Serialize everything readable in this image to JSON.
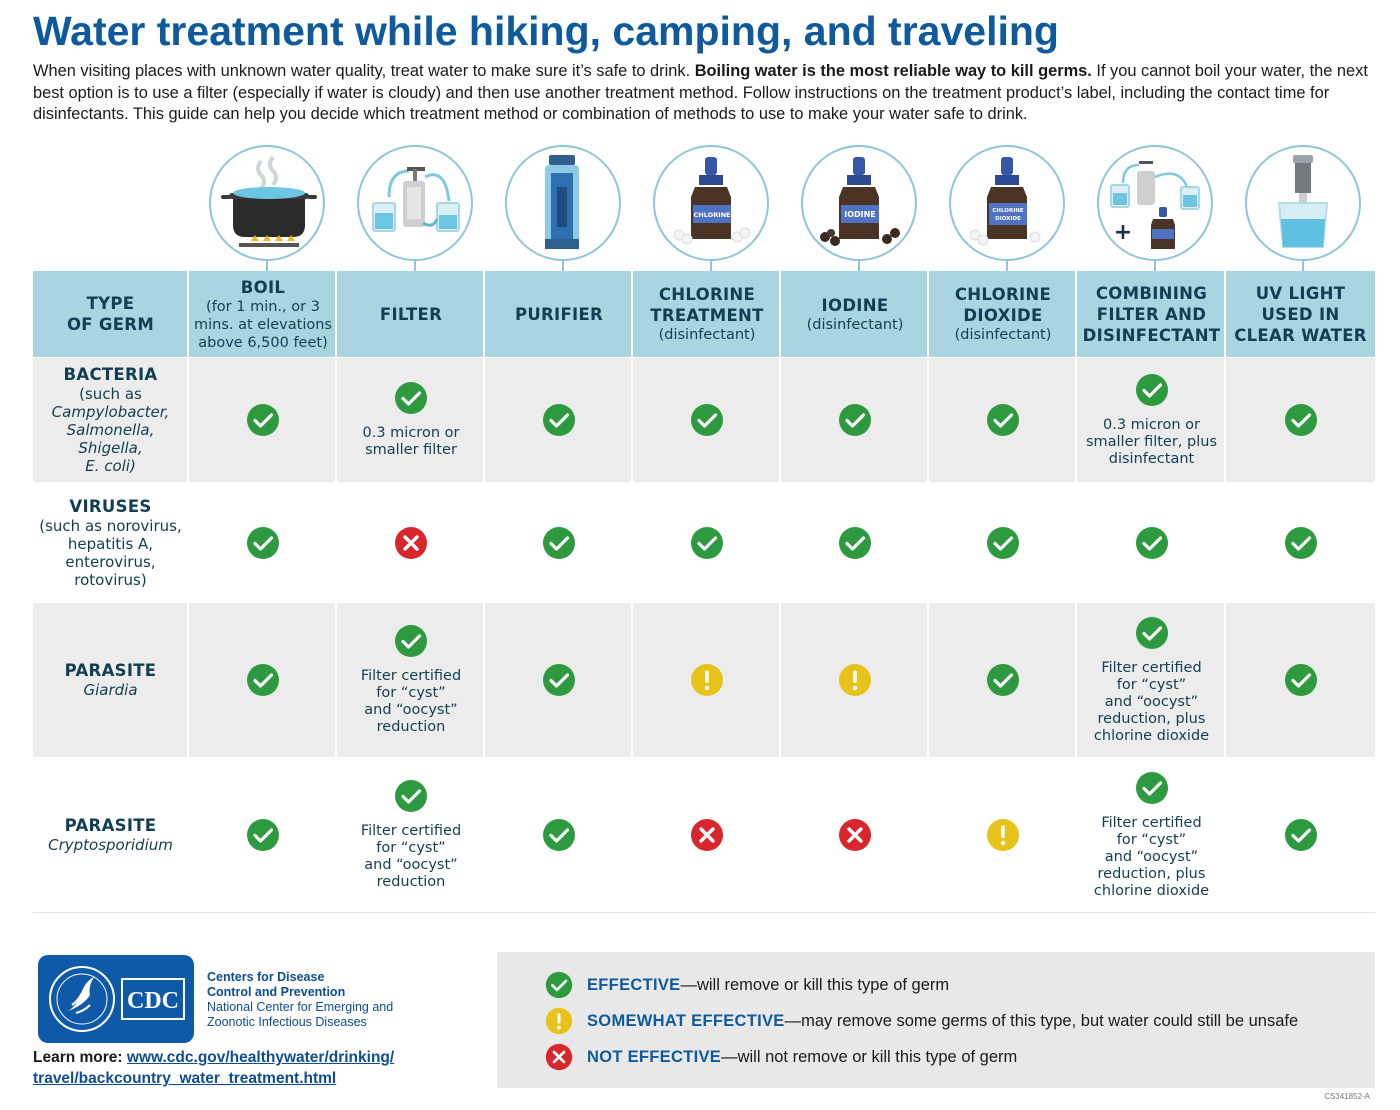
{
  "title": "Water treatment while hiking, camping, and traveling",
  "intro": {
    "part1": "When visiting places with unknown water quality, treat water to make sure it’s safe to drink.  ",
    "bold": "Boiling water is the most reliable way to kill germs.",
    "part2": " If you cannot boil your water, the next best option is to use a filter (especially if water is cloudy) and then use another treatment method. Follow instructions on the treatment product’s label, including the contact time for disinfectants. This guide can help you decide which treatment method or combination of methods to use to make your water safe to drink."
  },
  "icons": {
    "chlorine_label": "CHLORINE",
    "iodine_label": "IODINE",
    "chlorine_dioxide_label_1": "CHLORINE",
    "chlorine_dioxide_label_2": "DIOXIDE"
  },
  "colors": {
    "effective": "#2e9a3f",
    "somewhat": "#e6c21a",
    "not_effective": "#d8262c",
    "header_bg": "#a8d5df",
    "title": "#0e5a9c"
  },
  "table": {
    "first_header": [
      "TYPE",
      "OF GERM"
    ],
    "columns": [
      {
        "title": [
          "BOIL"
        ],
        "sub": [
          "(for 1 min., or 3",
          "mins. at elevations",
          "above 6,500 feet)"
        ]
      },
      {
        "title": [
          "FILTER"
        ],
        "sub": []
      },
      {
        "title": [
          "PURIFIER"
        ],
        "sub": []
      },
      {
        "title": [
          "CHLORINE",
          "TREATMENT"
        ],
        "sub": [
          "(disinfectant)"
        ]
      },
      {
        "title": [
          "IODINE"
        ],
        "sub": [
          "(disinfectant)"
        ]
      },
      {
        "title": [
          "CHLORINE",
          "DIOXIDE"
        ],
        "sub": [
          "(disinfectant)"
        ]
      },
      {
        "title": [
          "COMBINING",
          "FILTER AND",
          "DISINFECTANT"
        ],
        "sub": []
      },
      {
        "title": [
          "UV LIGHT",
          "USED IN",
          "CLEAR WATER"
        ],
        "sub": []
      }
    ],
    "rows": [
      {
        "name": "BACTERIA",
        "sub": [
          "(such as",
          "Campylobacter,",
          "Salmonella, Shigella,",
          "E. coli)"
        ],
        "cells": [
          {
            "status": "effective",
            "note": []
          },
          {
            "status": "effective",
            "note": [
              "0.3 micron or",
              "smaller filter"
            ]
          },
          {
            "status": "effective",
            "note": []
          },
          {
            "status": "effective",
            "note": []
          },
          {
            "status": "effective",
            "note": []
          },
          {
            "status": "effective",
            "note": []
          },
          {
            "status": "effective",
            "note": [
              "0.3 micron or",
              "smaller filter, plus",
              "disinfectant"
            ]
          },
          {
            "status": "effective",
            "note": []
          }
        ]
      },
      {
        "name": "VIRUSES",
        "sub": [
          "(such as norovirus,",
          "hepatitis A,",
          "enterovirus,",
          "rotovirus)"
        ],
        "cells": [
          {
            "status": "effective",
            "note": []
          },
          {
            "status": "not_effective",
            "note": []
          },
          {
            "status": "effective",
            "note": []
          },
          {
            "status": "effective",
            "note": []
          },
          {
            "status": "effective",
            "note": []
          },
          {
            "status": "effective",
            "note": []
          },
          {
            "status": "effective",
            "note": []
          },
          {
            "status": "effective",
            "note": []
          }
        ]
      },
      {
        "name": "PARASITE",
        "sub": [
          "Giardia"
        ],
        "cells": [
          {
            "status": "effective",
            "note": []
          },
          {
            "status": "effective",
            "note": [
              "Filter certified",
              "for “cyst”",
              "and “oocyst”",
              "reduction"
            ]
          },
          {
            "status": "effective",
            "note": []
          },
          {
            "status": "somewhat",
            "note": []
          },
          {
            "status": "somewhat",
            "note": []
          },
          {
            "status": "effective",
            "note": []
          },
          {
            "status": "effective",
            "note": [
              "Filter certified",
              "for “cyst”",
              "and “oocyst”",
              "reduction, plus",
              "chlorine dioxide"
            ]
          },
          {
            "status": "effective",
            "note": []
          }
        ]
      },
      {
        "name": "PARASITE",
        "sub": [
          "Cryptosporidium"
        ],
        "cells": [
          {
            "status": "effective",
            "note": []
          },
          {
            "status": "effective",
            "note": [
              "Filter certified",
              "for “cyst”",
              "and “oocyst”",
              "reduction"
            ]
          },
          {
            "status": "effective",
            "note": []
          },
          {
            "status": "not_effective",
            "note": []
          },
          {
            "status": "not_effective",
            "note": []
          },
          {
            "status": "somewhat",
            "note": []
          },
          {
            "status": "effective",
            "note": [
              "Filter certified",
              "for “cyst”",
              "and “oocyst”",
              "reduction, plus",
              "chlorine dioxide"
            ]
          },
          {
            "status": "effective",
            "note": []
          }
        ]
      }
    ]
  },
  "org": {
    "logo_text": "CDC",
    "line1": "Centers for Disease",
    "line2": "Control and Prevention",
    "line3": "National Center for Emerging and",
    "line4": "Zoonotic Infectious Diseases"
  },
  "learn_more": {
    "label": "Learn more:",
    "link_line1": "www.cdc.gov/healthywater/drinking/",
    "link_line2": "travel/backcountry_water_treatment.html"
  },
  "legend": [
    {
      "status": "effective",
      "key": "EFFECTIVE",
      "text": "—will remove or kill this type of germ"
    },
    {
      "status": "somewhat",
      "key": "SOMEWHAT EFFECTIVE",
      "text": "—may remove some germs of this type, but water could still be unsafe"
    },
    {
      "status": "not_effective",
      "key": "NOT EFFECTIVE",
      "text": "—will not remove or kill this type of germ"
    }
  ],
  "doc_code": "CS341852-A"
}
